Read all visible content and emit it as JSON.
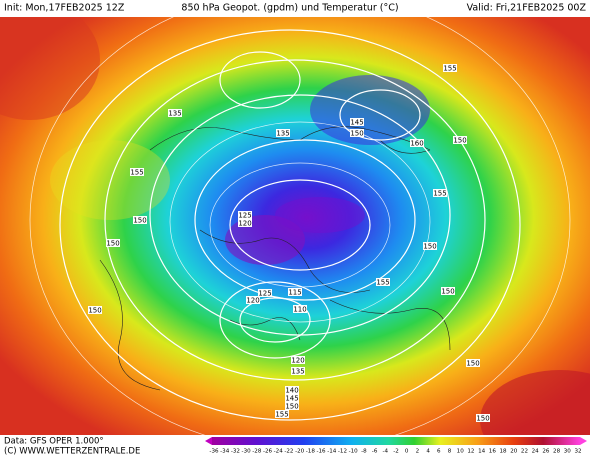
{
  "header": {
    "init": "Init: Mon,17FEB2025 12Z",
    "title": "850 hPa Geopot. (gpdm) und Temperatur (°C)",
    "valid": "Valid: Fri,21FEB2025 00Z"
  },
  "footer": {
    "data": "Data: GFS OPER 1.000°",
    "copyright": "(C) WWW.WETTERZENTRALE.DE"
  },
  "colorbar": {
    "ticks": [
      -36,
      -34,
      -32,
      -30,
      -28,
      -26,
      -24,
      -22,
      -20,
      -18,
      -16,
      -14,
      -12,
      -10,
      -8,
      -6,
      -4,
      -2,
      0,
      2,
      4,
      6,
      8,
      10,
      12,
      14,
      16,
      18,
      20,
      22,
      24,
      26,
      28,
      30,
      32
    ]
  },
  "contour_labels": [
    135,
    135,
    145,
    150,
    160,
    155,
    150,
    155,
    150,
    125,
    120,
    150,
    155,
    150,
    125,
    120,
    115,
    110,
    150,
    150,
    120,
    135,
    140,
    145,
    150,
    155,
    150,
    155,
    150
  ]
}
